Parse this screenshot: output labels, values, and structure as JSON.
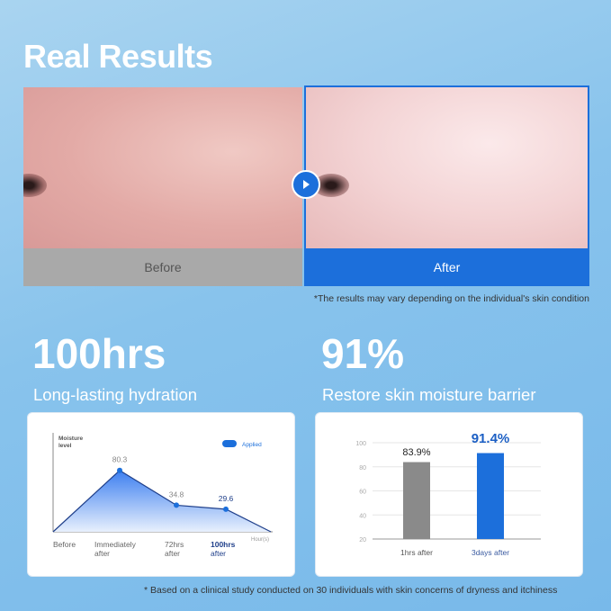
{
  "title": "Real Results",
  "comparison": {
    "before_label": "Before",
    "after_label": "After",
    "disclaimer": "*The results may vary depending on the individual's skin condition"
  },
  "stats": [
    {
      "value": "100hrs",
      "label": "Long-lasting hydration"
    },
    {
      "value": "91%",
      "label": "Restore skin moisture barrier"
    }
  ],
  "footnote": "* Based on a clinical study conducted on 30 individuals with skin concerns of dryness and itchiness",
  "colors": {
    "accent": "#1c6fdb",
    "gray_bar": "#8a8a8a"
  },
  "chart_data": [
    {
      "type": "area",
      "ylabel": "Moisture level",
      "xlabel": "Hour(s)",
      "legend": "Applied",
      "legend_position": "top-right",
      "categories": [
        "Before",
        "Immediately after",
        "72hrs after",
        "100hrs after",
        ""
      ],
      "values": [
        0,
        80.3,
        34.8,
        29.6,
        0
      ],
      "data_labels": [
        "",
        "80.3",
        "34.8",
        "29.6",
        ""
      ]
    },
    {
      "type": "bar",
      "categories": [
        "1hrs after",
        "3days after"
      ],
      "values": [
        83.9,
        91.4
      ],
      "data_labels": [
        "83.9%",
        "91.4%"
      ],
      "ylim": [
        20,
        100
      ],
      "yticks": [
        20,
        40,
        60,
        80,
        100
      ],
      "grid": true
    }
  ]
}
